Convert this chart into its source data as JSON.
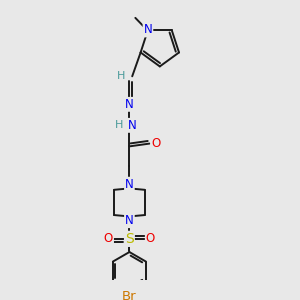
{
  "bg_color": "#e8e8e8",
  "bond_color": "#1a1a1a",
  "atom_colors": {
    "N": "#0000ee",
    "O": "#ee0000",
    "S": "#bbbb00",
    "Br": "#cc7700",
    "H_imine": "#4a9a9a",
    "H_nh": "#4a9a9a",
    "C": "#1a1a1a"
  },
  "lw": 1.4,
  "fs": 8.5,
  "fs_br": 9.5,
  "fs_me": 8.0
}
